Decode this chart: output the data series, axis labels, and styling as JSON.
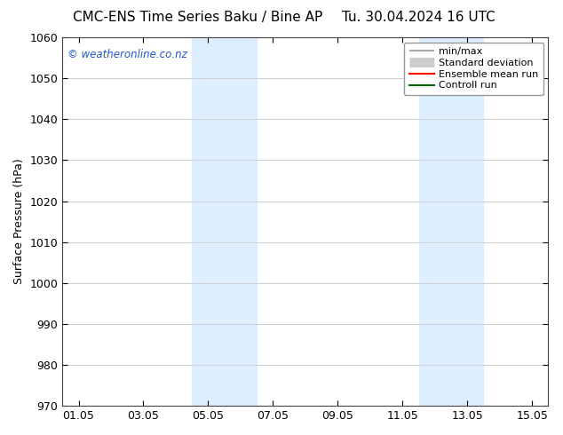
{
  "title_left": "CMC-ENS Time Series Baku / Bine AP",
  "title_right": "Tu. 30.04.2024 16 UTC",
  "ylabel": "Surface Pressure (hPa)",
  "ylim": [
    970,
    1060
  ],
  "yticks": [
    970,
    980,
    990,
    1000,
    1010,
    1020,
    1030,
    1040,
    1050,
    1060
  ],
  "xtick_labels": [
    "01.05",
    "03.05",
    "05.05",
    "07.05",
    "09.05",
    "11.05",
    "13.05",
    "15.05"
  ],
  "xtick_positions": [
    0,
    2,
    4,
    6,
    8,
    10,
    12,
    14
  ],
  "xlim": [
    -0.5,
    14.5
  ],
  "shaded_bands": [
    {
      "x_start": 3.5,
      "x_end": 5.5
    },
    {
      "x_start": 10.5,
      "x_end": 12.5
    }
  ],
  "shade_color": "#ddeeff",
  "watermark_text": "© weatheronline.co.nz",
  "watermark_color": "#2255cc",
  "legend_entries": [
    {
      "label": "min/max",
      "color": "#aaaaaa",
      "lw": 1.5
    },
    {
      "label": "Standard deviation",
      "color": "#cccccc",
      "lw": 6
    },
    {
      "label": "Ensemble mean run",
      "color": "#ff0000",
      "lw": 1.5
    },
    {
      "label": "Controll run",
      "color": "#006600",
      "lw": 1.5
    }
  ],
  "bg_color": "#ffffff",
  "grid_color": "#cccccc",
  "title_fontsize": 11,
  "ylabel_fontsize": 9,
  "tick_fontsize": 9,
  "legend_fontsize": 8
}
